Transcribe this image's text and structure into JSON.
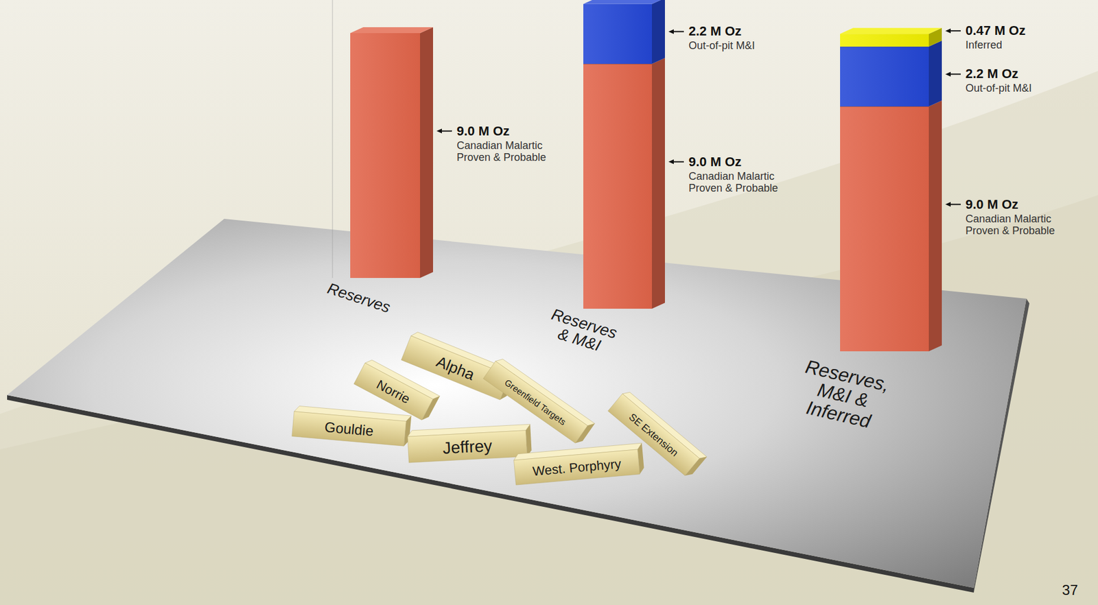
{
  "chart_data": {
    "type": "bar",
    "stacked": true,
    "data_labels": true,
    "tick_labels": false,
    "grid": false,
    "categories": [
      "Reserves",
      "Reserves & M&I",
      "Reserves, M&I & Inferred"
    ],
    "ylim": [
      0,
      12
    ],
    "series": [
      {
        "name": "Canadian Malartic Proven & Probable",
        "color": "#e2654a",
        "values": [
          9.0,
          9.0,
          9.0
        ],
        "value_labels": [
          "9.0 M Oz",
          "9.0 M Oz",
          "9.0 M Oz"
        ]
      },
      {
        "name": "Out-of-pit M&I",
        "color": "#2447d6",
        "values": [
          null,
          2.2,
          2.2
        ],
        "value_labels": [
          null,
          "2.2 M Oz",
          "2.2 M Oz"
        ]
      },
      {
        "name": "Inferred",
        "color": "#f2f000",
        "values": [
          null,
          null,
          0.47
        ],
        "value_labels": [
          null,
          null,
          "0.47 M Oz"
        ]
      }
    ],
    "annotations": [
      "Alpha",
      "Norrie",
      "Gouldie",
      "Greenfield Targets",
      "SE Extension",
      "Jeffrey",
      "West. Porphyry"
    ]
  },
  "page_number": "37"
}
